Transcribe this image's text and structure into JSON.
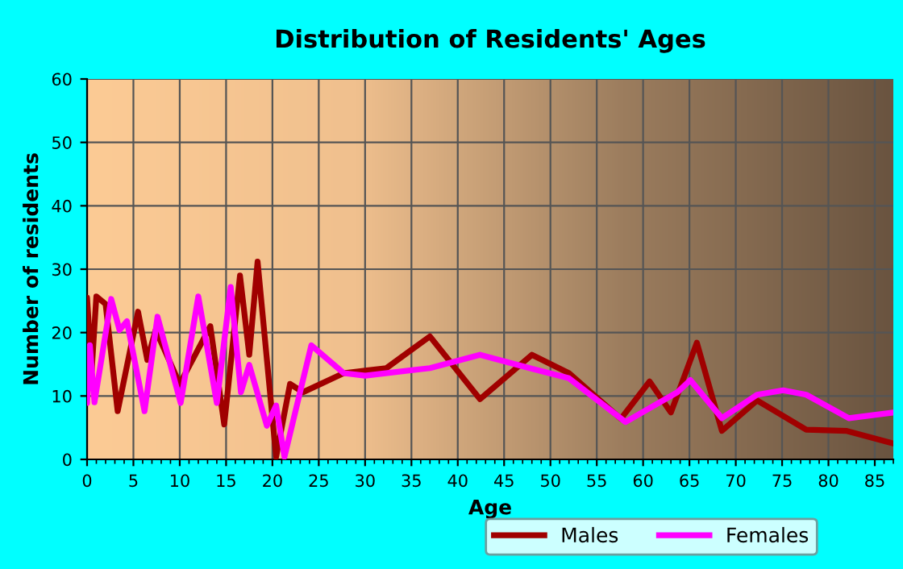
{
  "chart_data": {
    "type": "line",
    "title": "Distribution of Residents' Ages",
    "xlabel": "Age",
    "ylabel": "Number of residents",
    "xlim": [
      0,
      87
    ],
    "xticks": [
      0,
      5,
      10,
      15,
      20,
      25,
      30,
      35,
      40,
      45,
      50,
      55,
      60,
      65,
      70,
      75,
      80,
      85
    ],
    "ylim": [
      0,
      60
    ],
    "yticks": [
      0,
      10,
      20,
      30,
      40,
      50,
      60
    ],
    "grid": true,
    "legend": "bottom",
    "marker": "none",
    "line_style": "solid",
    "series": [
      {
        "name": "Males",
        "color": "#a00000",
        "x": [
          0,
          0.5,
          1,
          2,
          3.3,
          5.5,
          6.5,
          7.4,
          10,
          13.3,
          14.8,
          16.5,
          17.5,
          18.4,
          20.4,
          21.9,
          23.3,
          27.7,
          30,
          32.3,
          37,
          42.4,
          48,
          52,
          57.6,
          60.7,
          63,
          65.8,
          68.5,
          72.3,
          77.6,
          81.9,
          87
        ],
        "values": [
          25.5,
          14,
          25.7,
          24.5,
          7.6,
          23.3,
          15.7,
          20.4,
          11.9,
          21,
          5.5,
          29,
          16.5,
          31.2,
          0.4,
          11.9,
          10.6,
          13.6,
          14,
          14.4,
          19.4,
          9.5,
          16.5,
          13.6,
          6.4,
          12.3,
          7.4,
          18.4,
          4.5,
          9.3,
          4.7,
          4.5,
          2.5
        ]
      },
      {
        "name": "Females",
        "color": "#ff00ff",
        "x": [
          0,
          0.3,
          0.8,
          2.6,
          3.5,
          4.3,
          6.2,
          7.6,
          10.1,
          12,
          14,
          15.5,
          16.6,
          17.5,
          19.4,
          20.4,
          21.3,
          24.2,
          27.7,
          30,
          37,
          42.4,
          48,
          52,
          58.1,
          63.7,
          65.1,
          68.5,
          72.3,
          75.1,
          77.6,
          82.2,
          87
        ],
        "values": [
          8.9,
          18,
          9,
          25.3,
          20.4,
          21.8,
          7.6,
          22.5,
          8.9,
          25.7,
          8.9,
          27.2,
          10.6,
          14.9,
          5.3,
          8.5,
          0.4,
          18,
          13.6,
          13.2,
          14.4,
          16.5,
          14.3,
          12.8,
          5.9,
          10.6,
          12.5,
          6.5,
          10.2,
          10.9,
          10.2,
          6.5,
          7.4
        ]
      }
    ]
  }
}
